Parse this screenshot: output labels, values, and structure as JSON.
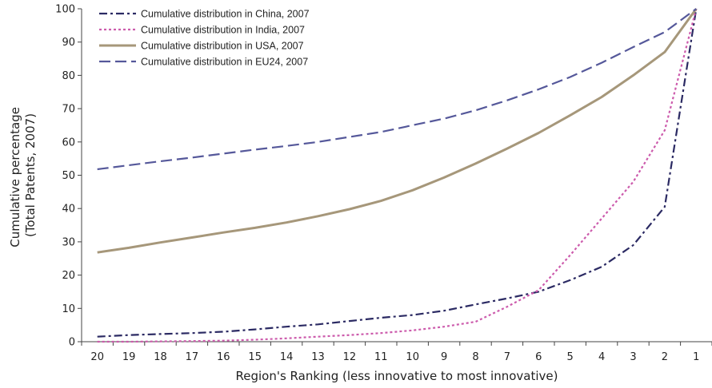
{
  "chart_data": {
    "type": "line",
    "x": [
      20,
      19,
      18,
      17,
      16,
      15,
      14,
      13,
      12,
      11,
      10,
      9,
      8,
      7,
      6,
      5,
      4,
      3,
      2,
      1
    ],
    "xlabel": "Region's Ranking (less innovative to most innovative)",
    "ylabel_line1": "Cumulative percentage",
    "ylabel_line2": "(Total Patents, 2007)",
    "ylim": [
      0,
      100
    ],
    "yticks": [
      0,
      10,
      20,
      30,
      40,
      50,
      60,
      70,
      80,
      90,
      100
    ],
    "grid": false,
    "legend_position": "top-left",
    "series": [
      {
        "name": "Cumulative distribution in China, 2007",
        "style": "dash-dot",
        "color": "#2b2a63",
        "values": [
          1.5,
          2.0,
          2.3,
          2.6,
          3.0,
          3.7,
          4.5,
          5.2,
          6.2,
          7.2,
          8.0,
          9.3,
          11.2,
          13.0,
          15.0,
          18.5,
          22.5,
          29.0,
          40.5,
          100
        ]
      },
      {
        "name": "Cumulative distribution in India, 2007",
        "style": "dotted",
        "color": "#cc5bac",
        "values": [
          0.0,
          0.0,
          0.1,
          0.2,
          0.3,
          0.6,
          1.0,
          1.5,
          2.0,
          2.6,
          3.4,
          4.5,
          6.0,
          10.5,
          15.5,
          26.0,
          37.0,
          48.0,
          63.5,
          100
        ]
      },
      {
        "name": "Cumulative distribution in USA, 2007",
        "style": "solid",
        "color": "#a6977a",
        "values": [
          26.8,
          28.2,
          29.8,
          31.3,
          32.8,
          34.2,
          35.8,
          37.7,
          39.8,
          42.3,
          45.5,
          49.3,
          53.5,
          58.0,
          62.7,
          68.0,
          73.5,
          80.0,
          87.0,
          100
        ]
      },
      {
        "name": "Cumulative distribution in EU24, 2007",
        "style": "dashed",
        "color": "#55589a",
        "values": [
          51.8,
          53.0,
          54.2,
          55.3,
          56.5,
          57.7,
          58.8,
          60.0,
          61.5,
          63.0,
          65.0,
          67.0,
          69.5,
          72.5,
          75.8,
          79.5,
          83.8,
          88.5,
          93.0,
          100
        ]
      }
    ]
  }
}
